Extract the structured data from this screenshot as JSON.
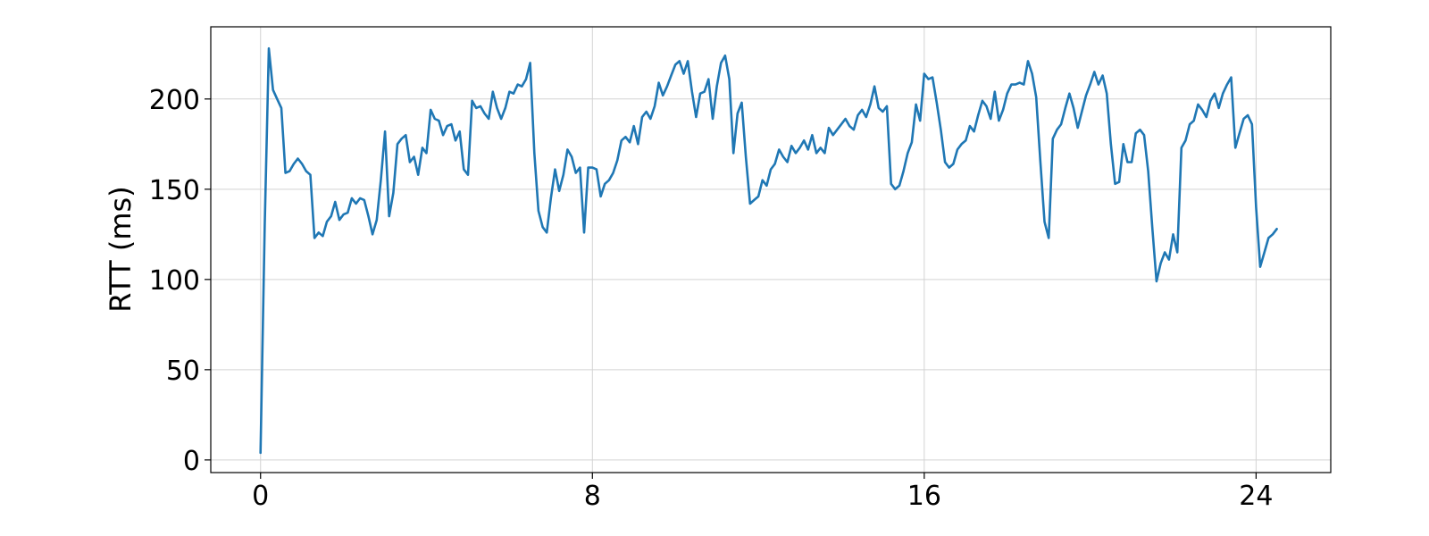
{
  "chart_data": {
    "type": "line",
    "title": "",
    "xlabel": "",
    "ylabel": "RTT (ms)",
    "xlim": [
      -1.2,
      25.8
    ],
    "ylim": [
      -7,
      240
    ],
    "xticks": [
      0,
      8,
      16,
      24
    ],
    "yticks": [
      0,
      50,
      100,
      150,
      200
    ],
    "grid": true,
    "legend": "none",
    "series": [
      {
        "color": "#1f77b4",
        "x": [
          0,
          0.1,
          0.2,
          0.3,
          0.4,
          0.5,
          0.6,
          0.7,
          0.8,
          0.9,
          1.0,
          1.1,
          1.2,
          1.3,
          1.4,
          1.5,
          1.6,
          1.7,
          1.8,
          1.9,
          2.0,
          2.1,
          2.2,
          2.3,
          2.4,
          2.5,
          2.6,
          2.7,
          2.8,
          2.9,
          3.0,
          3.1,
          3.2,
          3.3,
          3.4,
          3.5,
          3.6,
          3.7,
          3.8,
          3.9,
          4.0,
          4.1,
          4.2,
          4.3,
          4.4,
          4.5,
          4.6,
          4.7,
          4.8,
          4.9,
          5.0,
          5.1,
          5.2,
          5.3,
          5.4,
          5.5,
          5.6,
          5.7,
          5.8,
          5.9,
          6.0,
          6.1,
          6.2,
          6.3,
          6.4,
          6.5,
          6.6,
          6.7,
          6.8,
          6.9,
          7.0,
          7.1,
          7.2,
          7.3,
          7.4,
          7.5,
          7.6,
          7.7,
          7.8,
          7.9,
          8.0,
          8.1,
          8.2,
          8.3,
          8.4,
          8.5,
          8.6,
          8.7,
          8.8,
          8.9,
          9.0,
          9.1,
          9.2,
          9.3,
          9.4,
          9.5,
          9.6,
          9.7,
          9.8,
          9.9,
          10.0,
          10.1,
          10.2,
          10.3,
          10.4,
          10.5,
          10.6,
          10.7,
          10.8,
          10.9,
          11.0,
          11.1,
          11.2,
          11.3,
          11.4,
          11.5,
          11.6,
          11.7,
          11.8,
          11.9,
          12.0,
          12.1,
          12.2,
          12.3,
          12.4,
          12.5,
          12.6,
          12.7,
          12.8,
          12.9,
          13.0,
          13.1,
          13.2,
          13.3,
          13.4,
          13.5,
          13.6,
          13.7,
          13.8,
          13.9,
          14.0,
          14.1,
          14.2,
          14.3,
          14.4,
          14.5,
          14.6,
          14.7,
          14.8,
          14.9,
          15.0,
          15.1,
          15.2,
          15.3,
          15.4,
          15.5,
          15.6,
          15.7,
          15.8,
          15.9,
          16.0,
          16.1,
          16.2,
          16.3,
          16.4,
          16.5,
          16.6,
          16.7,
          16.8,
          16.9,
          17.0,
          17.1,
          17.2,
          17.3,
          17.4,
          17.5,
          17.6,
          17.7,
          17.8,
          17.9,
          18.0,
          18.1,
          18.2,
          18.3,
          18.4,
          18.5,
          18.6,
          18.7,
          18.8,
          18.9,
          19.0,
          19.1,
          19.2,
          19.3,
          19.4,
          19.5,
          19.6,
          19.7,
          19.8,
          19.9,
          20.0,
          20.1,
          20.2,
          20.3,
          20.4,
          20.5,
          20.6,
          20.7,
          20.8,
          20.9,
          21.0,
          21.1,
          21.2,
          21.3,
          21.4,
          21.5,
          21.6,
          21.7,
          21.8,
          21.9,
          22.0,
          22.1,
          22.2,
          22.3,
          22.4,
          22.5,
          22.6,
          22.7,
          22.8,
          22.9,
          23.0,
          23.1,
          23.2,
          23.3,
          23.4,
          23.5,
          23.6,
          23.7,
          23.8,
          23.9,
          24.0,
          24.1,
          24.2,
          24.3,
          24.4,
          24.5
        ],
        "y": [
          4,
          130,
          228,
          205,
          200,
          195,
          159,
          160,
          164,
          167,
          164,
          160,
          158,
          123,
          126,
          124,
          132,
          135,
          143,
          133,
          136,
          137,
          145,
          142,
          145,
          144,
          135,
          125,
          133,
          155,
          182,
          135,
          148,
          175,
          178,
          180,
          165,
          168,
          158,
          173,
          170,
          194,
          189,
          188,
          180,
          185,
          186,
          177,
          182,
          161,
          158,
          199,
          195,
          196,
          192,
          189,
          204,
          195,
          189,
          195,
          204,
          203,
          208,
          207,
          211,
          220,
          170,
          138,
          129,
          126,
          145,
          161,
          149,
          158,
          172,
          168,
          159,
          162,
          126,
          162,
          162,
          161,
          146,
          153,
          155,
          159,
          166,
          177,
          179,
          176,
          185,
          175,
          190,
          193,
          189,
          196,
          209,
          202,
          207,
          213,
          219,
          221,
          214,
          221,
          204,
          190,
          203,
          204,
          211,
          189,
          207,
          220,
          224,
          211,
          170,
          192,
          198,
          168,
          142,
          144,
          146,
          155,
          152,
          161,
          164,
          172,
          168,
          165,
          174,
          170,
          173,
          177,
          172,
          180,
          170,
          173,
          170,
          184,
          180,
          183,
          186,
          189,
          185,
          183,
          191,
          194,
          190,
          197,
          207,
          195,
          193,
          196,
          153,
          150,
          152,
          160,
          170,
          176,
          197,
          188,
          214,
          211,
          212,
          198,
          183,
          165,
          162,
          164,
          172,
          175,
          177,
          185,
          182,
          191,
          199,
          196,
          189,
          204,
          188,
          194,
          203,
          208,
          208,
          209,
          208,
          221,
          214,
          201,
          165,
          132,
          123,
          178,
          183,
          186,
          195,
          203,
          195,
          184,
          193,
          202,
          208,
          215,
          208,
          213,
          203,
          175,
          153,
          154,
          175,
          165,
          165,
          181,
          183,
          180,
          160,
          128,
          99,
          109,
          115,
          111,
          125,
          115,
          173,
          177,
          186,
          188,
          197,
          194,
          190,
          199,
          203,
          195,
          203,
          208,
          212,
          173,
          181,
          189,
          191,
          186,
          140,
          107,
          115,
          123,
          125,
          128
        ]
      }
    ]
  }
}
